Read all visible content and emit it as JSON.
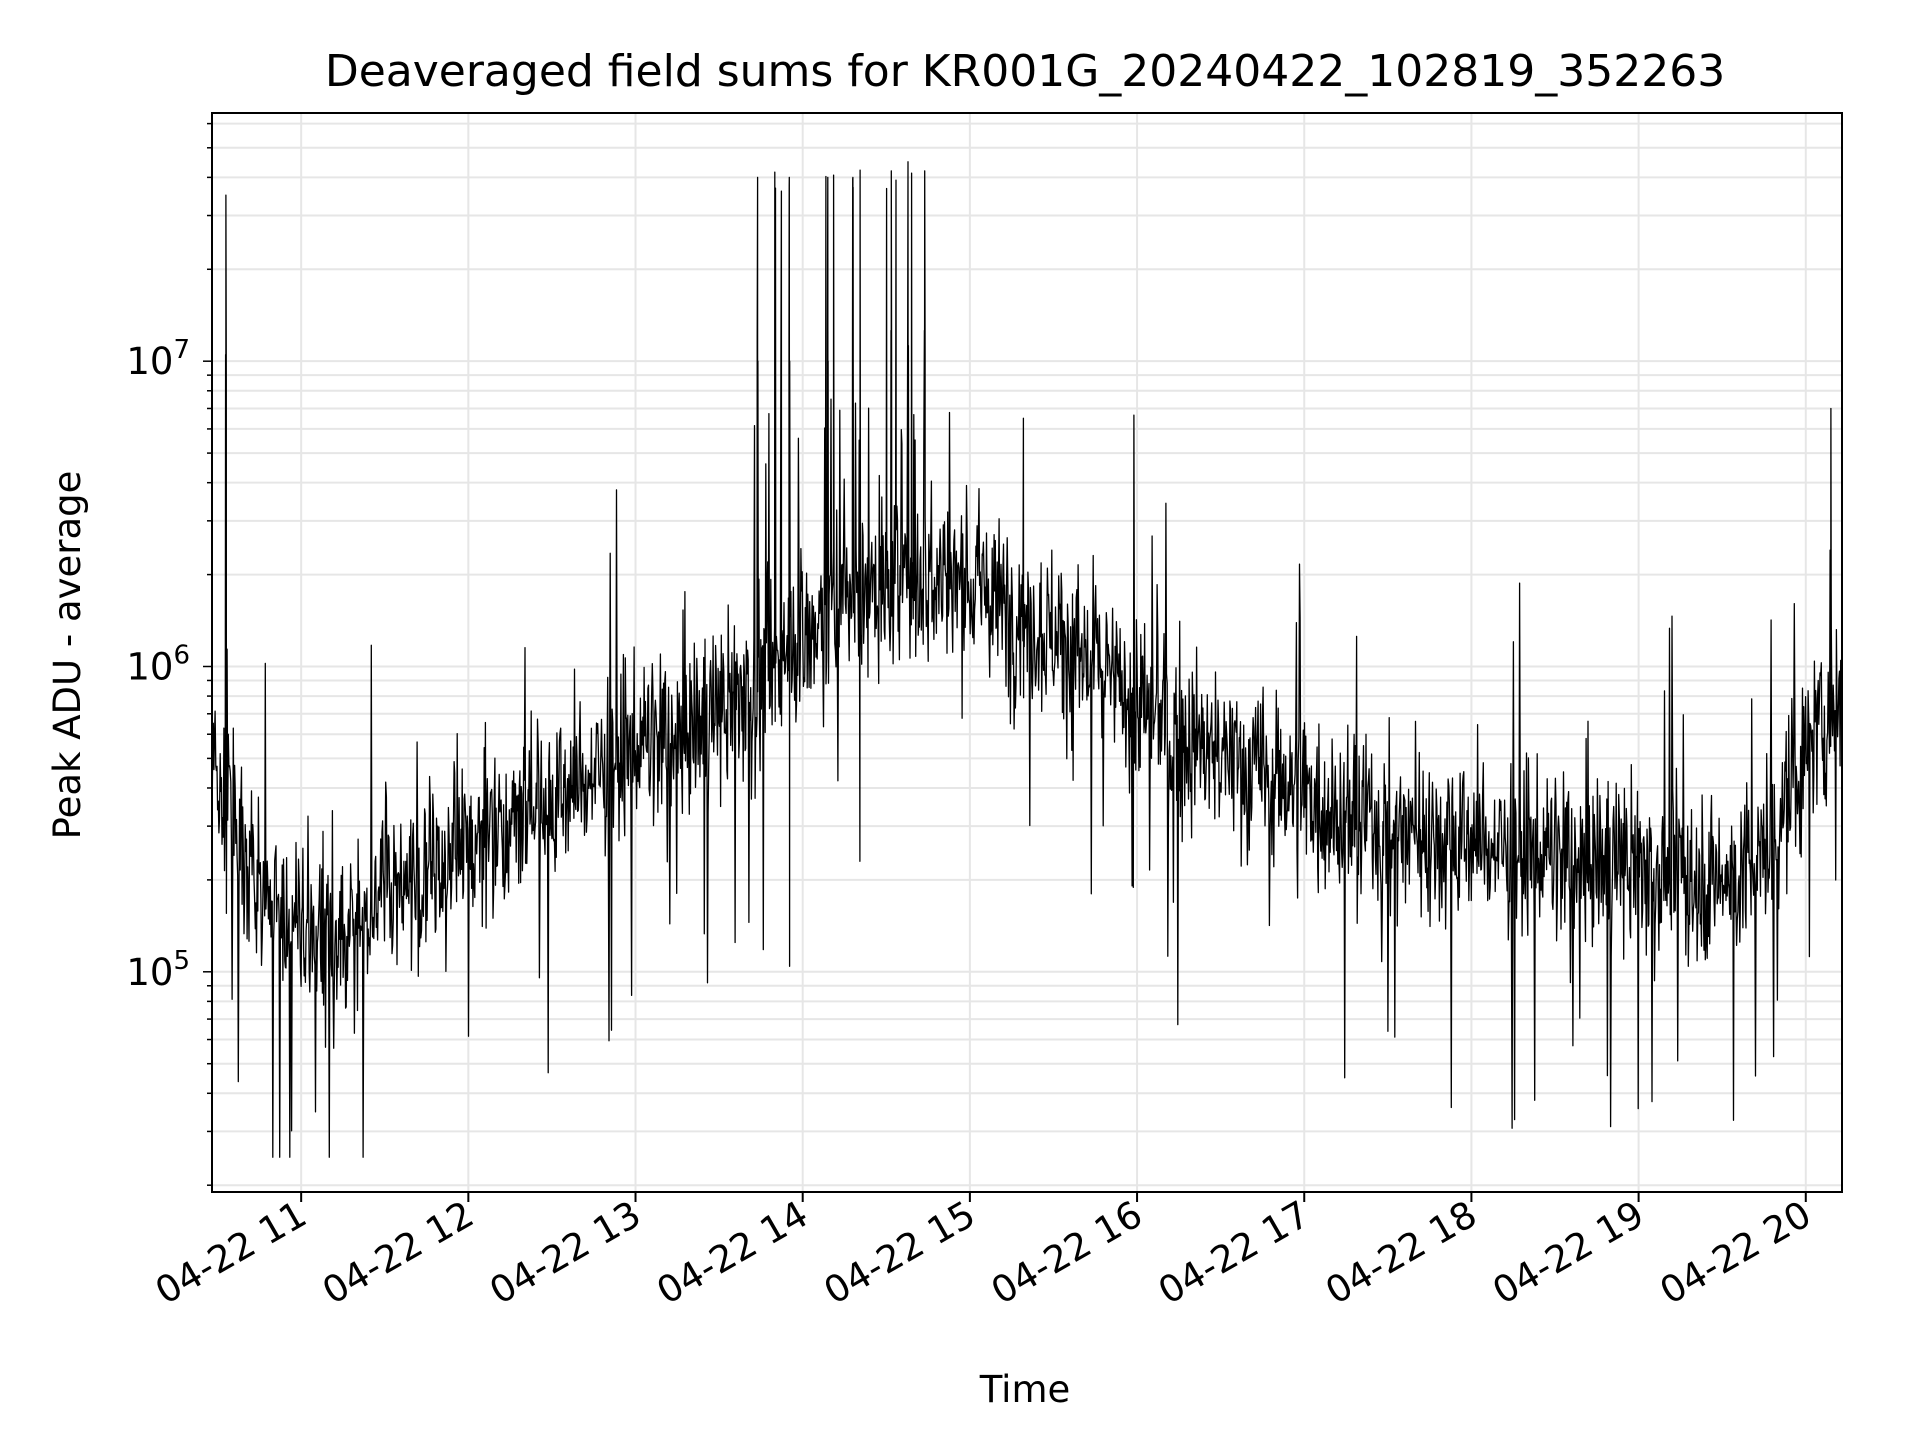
{
  "chart_data": {
    "type": "line",
    "title": "Deaveraged field sums for KR001G_20240422_102819_352263",
    "xlabel": "Time",
    "ylabel": "Peak ADU - average",
    "x_start": "04-22 10:28",
    "x_end": "04-22 20:13",
    "xlim": [
      "04-22 10:28",
      "04-22 20:13"
    ],
    "ylim": [
      19000,
      65000000
    ],
    "y_scale": "log",
    "grid": "both (major and minor)",
    "line_color": "#000000",
    "grid_color": "#e6e6e6",
    "x_ticks": [
      {
        "label": "04-22 11",
        "hour": 11
      },
      {
        "label": "04-22 12",
        "hour": 12
      },
      {
        "label": "04-22 13",
        "hour": 13
      },
      {
        "label": "04-22 14",
        "hour": 14
      },
      {
        "label": "04-22 15",
        "hour": 15
      },
      {
        "label": "04-22 16",
        "hour": 16
      },
      {
        "label": "04-22 17",
        "hour": 17
      },
      {
        "label": "04-22 18",
        "hour": 18
      },
      {
        "label": "04-22 19",
        "hour": 19
      },
      {
        "label": "04-22 20",
        "hour": 20
      }
    ],
    "y_ticks": [
      {
        "base": "10",
        "exp": "5",
        "value": 100000
      },
      {
        "base": "10",
        "exp": "6",
        "value": 1000000
      },
      {
        "base": "10",
        "exp": "7",
        "value": 10000000
      }
    ],
    "series": [
      {
        "values_desc": "median level (Peak ADU - average) over time, with approximate spike peaks",
        "time_hours": [
          10.47,
          10.6,
          10.75,
          11.0,
          11.25,
          11.5,
          11.75,
          12.0,
          12.25,
          12.5,
          12.75,
          13.0,
          13.25,
          13.5,
          13.75,
          14.0,
          14.25,
          14.5,
          14.75,
          15.0,
          15.25,
          15.5,
          15.75,
          16.0,
          16.25,
          16.5,
          16.75,
          17.0,
          17.25,
          17.5,
          17.75,
          18.0,
          18.25,
          18.5,
          18.75,
          19.0,
          19.25,
          19.5,
          19.75,
          19.9,
          20.05,
          20.22
        ],
        "values": [
          450000,
          350000,
          180000,
          130000,
          120000,
          200000,
          200000,
          280000,
          330000,
          360000,
          450000,
          550000,
          600000,
          700000,
          900000,
          1300000,
          1600000,
          1800000,
          1900000,
          1900000,
          1500000,
          1300000,
          1000000,
          750000,
          600000,
          500000,
          450000,
          400000,
          320000,
          300000,
          280000,
          270000,
          250000,
          240000,
          230000,
          220000,
          210000,
          200000,
          220000,
          400000,
          600000,
          800000
        ],
        "spikes": [
          {
            "time_hours": 10.55,
            "value": 35000000
          },
          {
            "time_hours": 13.73,
            "value": 40000000
          },
          {
            "time_hours": 13.92,
            "value": 40000000
          },
          {
            "time_hours": 14.15,
            "value": 40000000
          },
          {
            "time_hours": 14.3,
            "value": 40000000
          },
          {
            "time_hours": 14.53,
            "value": 42000000
          },
          {
            "time_hours": 14.63,
            "value": 45000000
          },
          {
            "time_hours": 14.73,
            "value": 42000000
          },
          {
            "time_hours": 15.32,
            "value": 6500000
          },
          {
            "time_hours": 20.15,
            "value": 7000000
          }
        ]
      }
    ]
  }
}
